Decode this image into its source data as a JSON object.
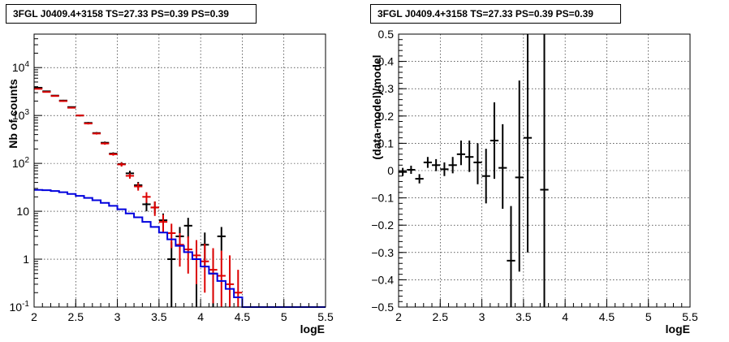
{
  "chart_data": [
    {
      "type": "scatter",
      "title": "3FGL J0409.4+3158 TS=27.33 PS=0.39 PS=0.39",
      "xlabel": "logE",
      "ylabel": "Nb of counts",
      "xlim": [
        2,
        5.5
      ],
      "ylim": [
        0.1,
        50000
      ],
      "log_y": true,
      "grid": true,
      "x_ticks": [
        "2",
        "2.5",
        "3",
        "3.5",
        "4",
        "4.5",
        "5",
        "5.5"
      ],
      "y_ticks": [
        {
          "base": "10",
          "exp": "-1",
          "value": 0.1
        },
        {
          "base": "1",
          "exp": "",
          "value": 1
        },
        {
          "base": "10",
          "exp": "",
          "value": 10
        },
        {
          "base": "10",
          "exp": "2",
          "value": 100
        },
        {
          "base": "10",
          "exp": "3",
          "value": 1000
        },
        {
          "base": "10",
          "exp": "4",
          "value": 10000
        }
      ],
      "series": [
        {
          "color": "#000000",
          "kind": "errorbars",
          "points": [
            {
              "x": 2.05,
              "y": 3800,
              "ylo": 3700,
              "yhi": 3900
            },
            {
              "x": 2.15,
              "y": 3200,
              "ylo": 3110,
              "yhi": 3290
            },
            {
              "x": 2.25,
              "y": 2600,
              "ylo": 2520,
              "yhi": 2680
            },
            {
              "x": 2.35,
              "y": 2050,
              "ylo": 1980,
              "yhi": 2120
            },
            {
              "x": 2.45,
              "y": 1500,
              "ylo": 1450,
              "yhi": 1550
            },
            {
              "x": 2.55,
              "y": 1000,
              "ylo": 960,
              "yhi": 1040
            },
            {
              "x": 2.65,
              "y": 700,
              "ylo": 670,
              "yhi": 730
            },
            {
              "x": 2.75,
              "y": 430,
              "ylo": 410,
              "yhi": 450
            },
            {
              "x": 2.85,
              "y": 270,
              "ylo": 255,
              "yhi": 285
            },
            {
              "x": 2.95,
              "y": 160,
              "ylo": 150,
              "yhi": 170
            },
            {
              "x": 3.05,
              "y": 97,
              "ylo": 88,
              "yhi": 106
            },
            {
              "x": 3.15,
              "y": 62,
              "ylo": 55,
              "yhi": 70
            },
            {
              "x": 3.25,
              "y": 35,
              "ylo": 30,
              "yhi": 41
            },
            {
              "x": 3.35,
              "y": 14,
              "ylo": 10,
              "yhi": 18
            },
            {
              "x": 3.45,
              "y": 12,
              "ylo": 9,
              "yhi": 16
            },
            {
              "x": 3.55,
              "y": 6.5,
              "ylo": 4,
              "yhi": 9
            },
            {
              "x": 3.65,
              "y": 1.0,
              "ylo": 0.1,
              "yhi": 2.3
            },
            {
              "x": 3.75,
              "y": 3.0,
              "ylo": 1.5,
              "yhi": 4.7
            },
            {
              "x": 3.85,
              "y": 5.0,
              "ylo": 2.8,
              "yhi": 7.3
            },
            {
              "x": 3.95,
              "y": 1.0,
              "ylo": 0.1,
              "yhi": 2.3
            },
            {
              "x": 4.05,
              "y": 2.0,
              "ylo": 0.7,
              "yhi": 3.6
            },
            {
              "x": 4.15,
              "y": 0.5,
              "ylo": 0.1,
              "yhi": 1.5
            },
            {
              "x": 4.25,
              "y": 3.0,
              "ylo": 1.5,
              "yhi": 4.7
            }
          ]
        },
        {
          "color": "#dd0000",
          "kind": "errorbars",
          "points": [
            {
              "x": 2.05,
              "y": 3600,
              "ylo": 3500,
              "yhi": 3700
            },
            {
              "x": 2.15,
              "y": 3100,
              "ylo": 3010,
              "yhi": 3190
            },
            {
              "x": 2.25,
              "y": 2550,
              "ylo": 2470,
              "yhi": 2630
            },
            {
              "x": 2.35,
              "y": 2000,
              "ylo": 1930,
              "yhi": 2070
            },
            {
              "x": 2.45,
              "y": 1450,
              "ylo": 1400,
              "yhi": 1500
            },
            {
              "x": 2.55,
              "y": 1000,
              "ylo": 960,
              "yhi": 1040
            },
            {
              "x": 2.65,
              "y": 680,
              "ylo": 650,
              "yhi": 710
            },
            {
              "x": 2.75,
              "y": 420,
              "ylo": 400,
              "yhi": 440
            },
            {
              "x": 2.85,
              "y": 260,
              "ylo": 245,
              "yhi": 275
            },
            {
              "x": 2.95,
              "y": 155,
              "ylo": 145,
              "yhi": 165
            },
            {
              "x": 3.05,
              "y": 95,
              "ylo": 86,
              "yhi": 104
            },
            {
              "x": 3.15,
              "y": 55,
              "ylo": 48,
              "yhi": 62
            },
            {
              "x": 3.25,
              "y": 33,
              "ylo": 27,
              "yhi": 39
            },
            {
              "x": 3.35,
              "y": 20,
              "ylo": 15,
              "yhi": 25
            },
            {
              "x": 3.45,
              "y": 12,
              "ylo": 8,
              "yhi": 16
            },
            {
              "x": 3.55,
              "y": 6.0,
              "ylo": 3.5,
              "yhi": 8.5
            },
            {
              "x": 3.65,
              "y": 3.5,
              "ylo": 1.7,
              "yhi": 5.5
            },
            {
              "x": 3.75,
              "y": 2.0,
              "ylo": 0.7,
              "yhi": 3.5
            },
            {
              "x": 3.85,
              "y": 1.6,
              "ylo": 0.5,
              "yhi": 3.0
            },
            {
              "x": 3.95,
              "y": 1.2,
              "ylo": 0.3,
              "yhi": 2.5
            },
            {
              "x": 4.05,
              "y": 0.9,
              "ylo": 0.2,
              "yhi": 2.1
            },
            {
              "x": 4.15,
              "y": 0.6,
              "ylo": 0.12,
              "yhi": 1.7
            },
            {
              "x": 4.25,
              "y": 0.45,
              "ylo": 0.1,
              "yhi": 1.5
            },
            {
              "x": 4.35,
              "y": 0.3,
              "ylo": 0.1,
              "yhi": 1.2
            },
            {
              "x": 4.45,
              "y": 0.2,
              "ylo": 0.1,
              "yhi": 0.6
            }
          ]
        },
        {
          "color": "#0000dd",
          "kind": "step",
          "bin_width": 0.1,
          "x": [
            2.0,
            2.1,
            2.2,
            2.3,
            2.4,
            2.5,
            2.6,
            2.7,
            2.8,
            2.9,
            3.0,
            3.1,
            3.2,
            3.3,
            3.4,
            3.5,
            3.6,
            3.7,
            3.8,
            3.9,
            4.0,
            4.1,
            4.2,
            4.3,
            4.4,
            4.5,
            4.6,
            4.7,
            4.8,
            4.9,
            5.0,
            5.1,
            5.2,
            5.3,
            5.4
          ],
          "y": [
            28,
            27.5,
            26.5,
            25,
            23,
            21,
            19,
            17,
            15,
            13,
            11,
            9,
            7.5,
            6,
            4.7,
            3.6,
            2.6,
            1.9,
            1.4,
            1.0,
            0.7,
            0.5,
            0.35,
            0.24,
            0.16,
            0.1,
            0.1,
            0.1,
            0.1,
            0.1,
            0.1,
            0.1,
            0.1,
            0.1,
            0.1
          ]
        }
      ]
    },
    {
      "type": "scatter",
      "title": "3FGL J0409.4+3158 TS=27.33 PS=0.39 PS=0.39",
      "xlabel": "logE",
      "ylabel": "(data-model)/model",
      "xlim": [
        2,
        5.5
      ],
      "ylim": [
        -0.5,
        0.5
      ],
      "log_y": false,
      "grid": true,
      "x_ticks": [
        "2",
        "2.5",
        "3",
        "3.5",
        "4",
        "4.5",
        "5",
        "5.5"
      ],
      "y_ticks": [
        "−0.5",
        "−0.4",
        "−0.3",
        "−0.2",
        "−0.1",
        "0",
        "0.1",
        "0.2",
        "0.3",
        "0.4",
        "0.5"
      ],
      "series": [
        {
          "color": "#000000",
          "kind": "errorbars",
          "points": [
            {
              "x": 2.05,
              "y": -0.005,
              "ylo": -0.02,
              "yhi": 0.01
            },
            {
              "x": 2.15,
              "y": 0.003,
              "ylo": -0.012,
              "yhi": 0.018
            },
            {
              "x": 2.25,
              "y": -0.03,
              "ylo": -0.047,
              "yhi": -0.013
            },
            {
              "x": 2.35,
              "y": 0.03,
              "ylo": 0.01,
              "yhi": 0.05
            },
            {
              "x": 2.45,
              "y": 0.02,
              "ylo": -0.002,
              "yhi": 0.042
            },
            {
              "x": 2.55,
              "y": 0.005,
              "ylo": -0.02,
              "yhi": 0.03
            },
            {
              "x": 2.65,
              "y": 0.02,
              "ylo": -0.01,
              "yhi": 0.05
            },
            {
              "x": 2.75,
              "y": 0.06,
              "ylo": 0.02,
              "yhi": 0.11
            },
            {
              "x": 2.85,
              "y": 0.05,
              "ylo": -0.005,
              "yhi": 0.11
            },
            {
              "x": 2.95,
              "y": 0.03,
              "ylo": -0.05,
              "yhi": 0.1
            },
            {
              "x": 3.05,
              "y": -0.02,
              "ylo": -0.12,
              "yhi": 0.08
            },
            {
              "x": 3.15,
              "y": 0.11,
              "ylo": -0.03,
              "yhi": 0.25
            },
            {
              "x": 3.25,
              "y": 0.01,
              "ylo": -0.14,
              "yhi": 0.17
            },
            {
              "x": 3.35,
              "y": -0.33,
              "ylo": -0.5,
              "yhi": -0.13
            },
            {
              "x": 3.45,
              "y": -0.025,
              "ylo": -0.37,
              "yhi": 0.33
            },
            {
              "x": 3.55,
              "y": 0.12,
              "ylo": -0.3,
              "yhi": 0.5
            },
            {
              "x": 3.75,
              "y": -0.07,
              "ylo": -0.5,
              "yhi": 0.5
            }
          ]
        }
      ]
    }
  ]
}
